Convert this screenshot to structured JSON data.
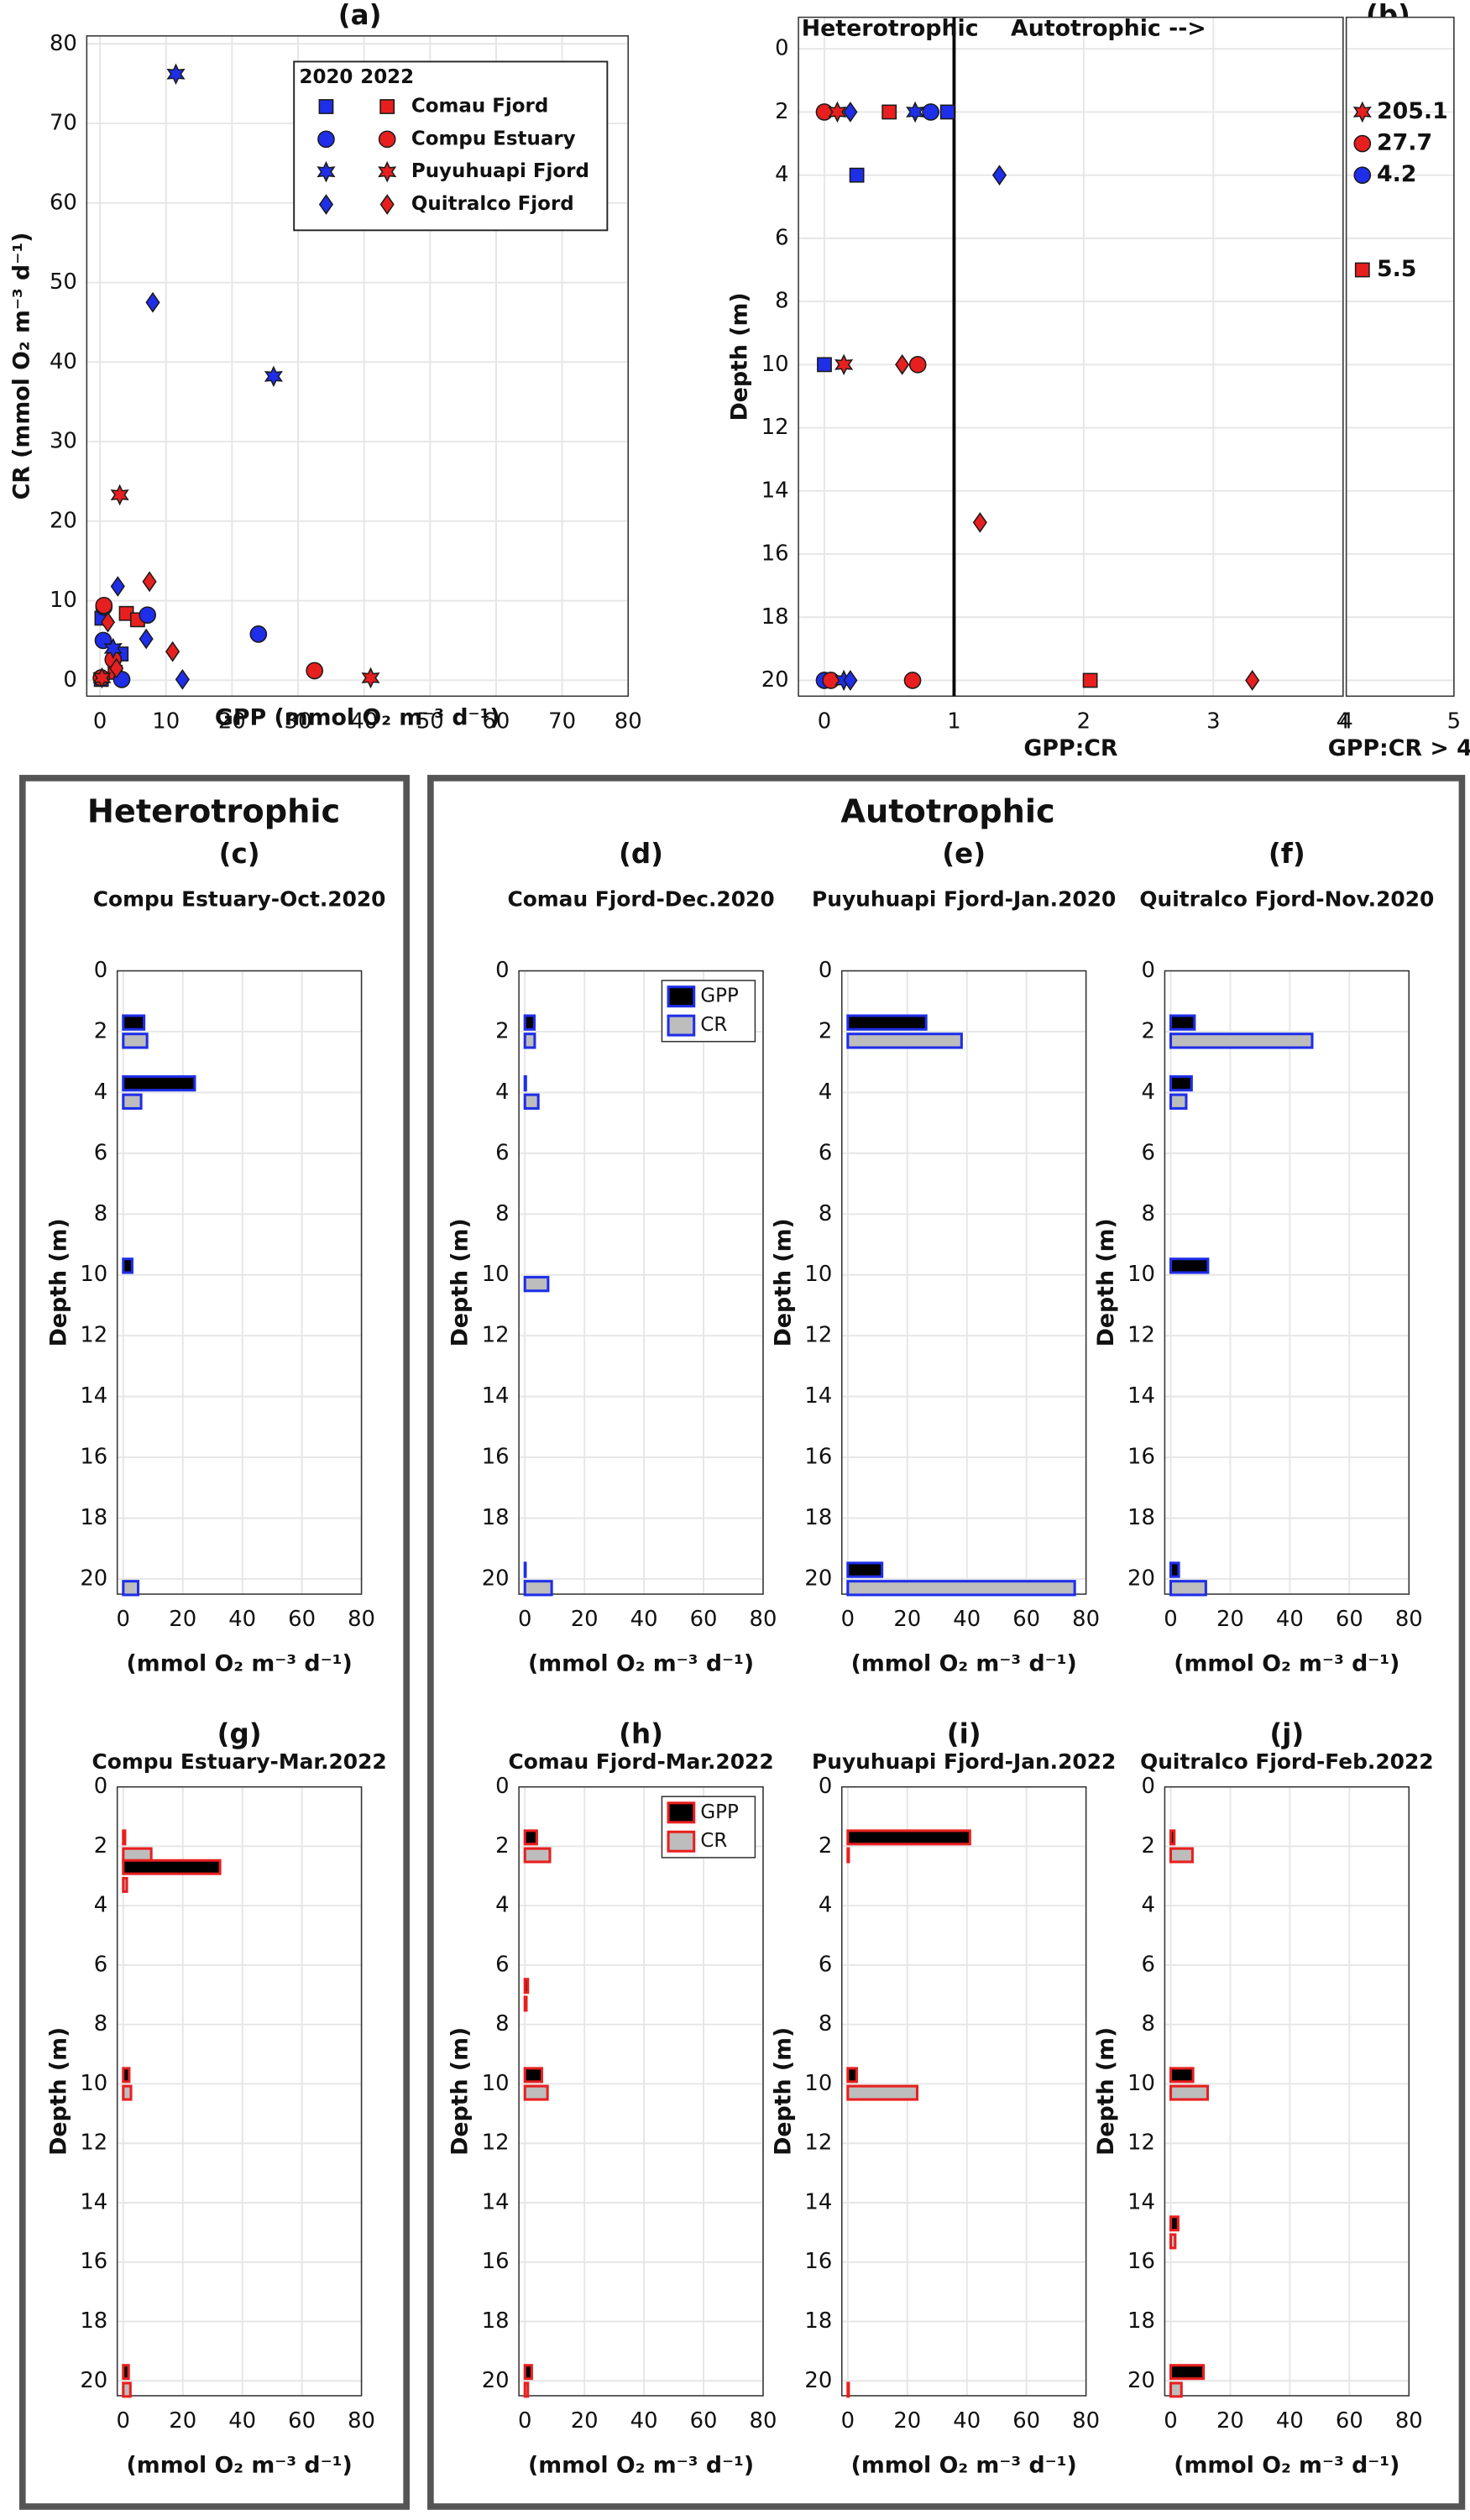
{
  "groups": [
    {
      "title": "Heterotrophic"
    },
    {
      "title": "Autotrophic"
    }
  ],
  "chart_data": [
    {
      "type": "scatter",
      "label": "(a)",
      "xlabel": "GPP (mmol O₂ m⁻³ d⁻¹)",
      "ylabel": "CR (mmol O₂ m⁻³ d⁻¹)",
      "xlim": [
        -2,
        80
      ],
      "ylim": [
        -2,
        81
      ],
      "xticks": [
        0,
        10,
        20,
        30,
        40,
        50,
        60,
        70,
        80
      ],
      "yticks": [
        0,
        10,
        20,
        30,
        40,
        50,
        60,
        70,
        80
      ],
      "grid": true,
      "legend": "upper right",
      "years": [
        {
          "label": "2020",
          "color": "#1f2ee8"
        },
        {
          "label": "2022",
          "color": "#e81f1f"
        }
      ],
      "sites": [
        {
          "name": "Comau Fjord",
          "marker": "square",
          "points": [
            {
              "x": [
                0.3,
                3.2,
                0.2
              ],
              "y": [
                7.8,
                3.3,
                0.1
              ]
            },
            {
              "x": [
                4.0,
                5.7,
                2.3
              ],
              "y": [
                8.4,
                7.6,
                1.0
              ]
            }
          ]
        },
        {
          "name": "Compu Estuary",
          "marker": "circle",
          "points": [
            {
              "x": [
                0.6,
                0.5,
                7.2,
                24.0,
                3.3
              ],
              "y": [
                9.2,
                5.0,
                8.2,
                5.8,
                0.1
              ]
            },
            {
              "x": [
                32.5,
                0.6,
                2.0,
                0.2
              ],
              "y": [
                1.2,
                9.4,
                2.6,
                0.3
              ]
            }
          ]
        },
        {
          "name": "Puyuhuapi Fjord",
          "marker": "star",
          "points": [
            {
              "x": [
                11.5,
                26.3,
                2.0
              ],
              "y": [
                76.2,
                38.2,
                4.0
              ]
            },
            {
              "x": [
                3.0,
                41.0,
                0.3
              ],
              "y": [
                23.3,
                0.3,
                0.3
              ]
            }
          ]
        },
        {
          "name": "Quitralco Fjord",
          "marker": "diamond",
          "points": [
            {
              "x": [
                8.0,
                2.7,
                7.0,
                12.5
              ],
              "y": [
                47.5,
                11.8,
                5.2,
                0.1
              ]
            },
            {
              "x": [
                1.2,
                7.5,
                2.5,
                11.0
              ],
              "y": [
                7.3,
                12.4,
                1.5,
                3.6
              ]
            }
          ]
        }
      ]
    },
    {
      "type": "scatter",
      "label": "(b)",
      "annotations": [
        "Heterotrophic",
        "Autotrophic -->"
      ],
      "xlabel": "GPP:CR",
      "ylabel": "Depth (m)",
      "xlim": [
        -0.2,
        4
      ],
      "ylim": [
        -1,
        20.5
      ],
      "y_reversed": true,
      "xticks": [
        0,
        1,
        2,
        3,
        4
      ],
      "yticks": [
        0,
        2,
        4,
        6,
        8,
        10,
        12,
        14,
        16,
        18,
        20
      ],
      "grid": true,
      "threshold": 1,
      "years": [
        {
          "color": "#1f2ee8"
        },
        {
          "color": "#e81f1f"
        }
      ],
      "sites": [
        {
          "marker": "square",
          "points": [
            {
              "x": [
                0.95,
                0.25,
                0.0
              ],
              "y": [
                2,
                4,
                10
              ]
            },
            {
              "x": [
                0.5,
                2.05
              ],
              "y": [
                2,
                20
              ]
            }
          ]
        },
        {
          "marker": "circle",
          "points": [
            {
              "x": [
                0.82,
                0.0
              ],
              "y": [
                2,
                20
              ]
            },
            {
              "x": [
                0.0,
                0.72,
                0.68,
                0.05
              ],
              "y": [
                2,
                10,
                20,
                20
              ]
            }
          ]
        },
        {
          "marker": "star",
          "points": [
            {
              "x": [
                0.7,
                0.15
              ],
              "y": [
                2,
                20
              ]
            },
            {
              "x": [
                0.1,
                0.15
              ],
              "y": [
                2,
                10
              ]
            }
          ]
        },
        {
          "marker": "diamond",
          "points": [
            {
              "x": [
                0.2,
                1.35,
                0.2
              ],
              "y": [
                2,
                4,
                20
              ]
            },
            {
              "x": [
                0.6,
                1.2,
                3.3
              ],
              "y": [
                10,
                15,
                20
              ]
            }
          ]
        }
      ],
      "inset": {
        "xlabel": "GPP:CR > 4",
        "xlim": [
          4,
          5
        ],
        "xticks": [
          4,
          5
        ],
        "points": [
          {
            "marker": "star",
            "color": "#e81f1f",
            "value": 205.1,
            "y": 2
          },
          {
            "marker": "circle",
            "color": "#e81f1f",
            "value": 27.7,
            "y": 3
          },
          {
            "marker": "circle",
            "color": "#1f2ee8",
            "value": 4.2,
            "y": 4
          },
          {
            "marker": "square",
            "color": "#e81f1f",
            "value": 5.5,
            "y": 7
          }
        ]
      }
    },
    {
      "type": "barh",
      "label": "(c)",
      "title": "Compu Estuary-Oct.2020",
      "edge_color": "#1f2ee8",
      "xlabel": "(mmol O₂ m⁻³ d⁻¹)",
      "ylabel": "Depth (m)",
      "xlim": [
        -2,
        80
      ],
      "ylim": [
        0,
        20.5
      ],
      "y_reversed": true,
      "xticks": [
        0,
        20,
        40,
        60,
        80
      ],
      "yticks": [
        0,
        2,
        4,
        6,
        8,
        10,
        12,
        14,
        16,
        18,
        20
      ],
      "grid": true,
      "depths": [
        2,
        4,
        10,
        20
      ],
      "series": [
        {
          "fill": "#000000",
          "values": [
            7,
            24,
            3,
            null
          ]
        },
        {
          "fill": "#bdbdbd",
          "values": [
            8,
            6,
            null,
            5
          ]
        }
      ]
    },
    {
      "type": "barh",
      "label": "(d)",
      "title": "Comau Fjord-Dec.2020",
      "edge_color": "#1f2ee8",
      "xlabel": "(mmol O₂ m⁻³ d⁻¹)",
      "ylabel": "Depth (m)",
      "xlim": [
        -2,
        80
      ],
      "ylim": [
        0,
        20.5
      ],
      "y_reversed": true,
      "xticks": [
        0,
        20,
        40,
        60,
        80
      ],
      "yticks": [
        0,
        2,
        4,
        6,
        8,
        10,
        12,
        14,
        16,
        18,
        20
      ],
      "grid": true,
      "legend": "upper right",
      "depths": [
        2,
        4,
        10,
        20
      ],
      "series": [
        {
          "name": "GPP",
          "fill": "#000000",
          "values": [
            3.2,
            0.3,
            null,
            0.2
          ]
        },
        {
          "name": "CR",
          "fill": "#bdbdbd",
          "values": [
            3.3,
            4.5,
            7.8,
            9.0
          ]
        }
      ]
    },
    {
      "type": "barh",
      "label": "(e)",
      "title": "Puyuhuapi Fjord-Jan.2020",
      "edge_color": "#1f2ee8",
      "xlabel": "(mmol O₂ m⁻³ d⁻¹)",
      "ylabel": "Depth (m)",
      "xlim": [
        -2,
        80
      ],
      "ylim": [
        0,
        20.5
      ],
      "y_reversed": true,
      "xticks": [
        0,
        20,
        40,
        60,
        80
      ],
      "yticks": [
        0,
        2,
        4,
        6,
        8,
        10,
        12,
        14,
        16,
        18,
        20
      ],
      "grid": true,
      "depths": [
        2,
        20
      ],
      "series": [
        {
          "fill": "#000000",
          "values": [
            26.3,
            11.5
          ]
        },
        {
          "fill": "#bdbdbd",
          "values": [
            38.2,
            76.2
          ]
        }
      ]
    },
    {
      "type": "barh",
      "label": "(f)",
      "title": "Quitralco Fjord-Nov.2020",
      "edge_color": "#1f2ee8",
      "xlabel": "(mmol O₂ m⁻³ d⁻¹)",
      "ylabel": "Depth (m)",
      "xlim": [
        -2,
        80
      ],
      "ylim": [
        0,
        20.5
      ],
      "y_reversed": true,
      "xticks": [
        0,
        20,
        40,
        60,
        80
      ],
      "yticks": [
        0,
        2,
        4,
        6,
        8,
        10,
        12,
        14,
        16,
        18,
        20
      ],
      "grid": true,
      "depths": [
        2,
        4,
        10,
        20
      ],
      "series": [
        {
          "fill": "#000000",
          "values": [
            8.0,
            7.0,
            12.5,
            2.7
          ]
        },
        {
          "fill": "#bdbdbd",
          "values": [
            47.5,
            5.2,
            null,
            11.8
          ]
        }
      ]
    },
    {
      "type": "barh",
      "label": "(g)",
      "title": "Compu Estuary-Mar.2022",
      "edge_color": "#e81f1f",
      "xlabel": "(mmol O₂ m⁻³ d⁻¹)",
      "ylabel": "Depth (m)",
      "xlim": [
        -2,
        80
      ],
      "ylim": [
        0,
        20.5
      ],
      "y_reversed": true,
      "xticks": [
        0,
        20,
        40,
        60,
        80
      ],
      "yticks": [
        0,
        2,
        4,
        6,
        8,
        10,
        12,
        14,
        16,
        18,
        20
      ],
      "grid": true,
      "depths": [
        2,
        3,
        10,
        20
      ],
      "series": [
        {
          "fill": "#000000",
          "values": [
            0.6,
            32.5,
            2.0,
            1.8
          ]
        },
        {
          "fill": "#bdbdbd",
          "values": [
            9.4,
            1.2,
            2.6,
            2.4
          ]
        }
      ]
    },
    {
      "type": "barh",
      "label": "(h)",
      "title": "Comau Fjord-Mar.2022",
      "edge_color": "#e81f1f",
      "xlabel": "(mmol O₂ m⁻³ d⁻¹)",
      "ylabel": "Depth (m)",
      "xlim": [
        -2,
        80
      ],
      "ylim": [
        0,
        20.5
      ],
      "y_reversed": true,
      "xticks": [
        0,
        20,
        40,
        60,
        80
      ],
      "yticks": [
        0,
        2,
        4,
        6,
        8,
        10,
        12,
        14,
        16,
        18,
        20
      ],
      "grid": true,
      "legend": "upper right",
      "depths": [
        2,
        7,
        10,
        20
      ],
      "series": [
        {
          "name": "GPP",
          "fill": "#000000",
          "values": [
            4.0,
            1.0,
            5.7,
            2.3
          ]
        },
        {
          "name": "CR",
          "fill": "#bdbdbd",
          "values": [
            8.4,
            0.5,
            7.6,
            1.0
          ]
        }
      ]
    },
    {
      "type": "barh",
      "label": "(i)",
      "title": "Puyuhuapi Fjord-Jan.2022",
      "edge_color": "#e81f1f",
      "xlabel": "(mmol O₂ m⁻³ d⁻¹)",
      "ylabel": "Depth (m)",
      "xlim": [
        -2,
        80
      ],
      "ylim": [
        0,
        20.5
      ],
      "y_reversed": true,
      "xticks": [
        0,
        20,
        40,
        60,
        80
      ],
      "yticks": [
        0,
        2,
        4,
        6,
        8,
        10,
        12,
        14,
        16,
        18,
        20
      ],
      "grid": true,
      "depths": [
        2,
        10,
        20
      ],
      "series": [
        {
          "fill": "#000000",
          "values": [
            41.0,
            3.0,
            null
          ]
        },
        {
          "fill": "#bdbdbd",
          "values": [
            0.3,
            23.3,
            0.3
          ]
        }
      ]
    },
    {
      "type": "barh",
      "label": "(j)",
      "title": "Quitralco Fjord-Feb.2022",
      "edge_color": "#e81f1f",
      "xlabel": "(mmol O₂ m⁻³ d⁻¹)",
      "ylabel": "Depth (m)",
      "xlim": [
        -2,
        80
      ],
      "ylim": [
        0,
        20.5
      ],
      "y_reversed": true,
      "xticks": [
        0,
        20,
        40,
        60,
        80
      ],
      "yticks": [
        0,
        2,
        4,
        6,
        8,
        10,
        12,
        14,
        16,
        18,
        20
      ],
      "grid": true,
      "depths": [
        2,
        10,
        15,
        20
      ],
      "series": [
        {
          "fill": "#000000",
          "values": [
            1.2,
            7.5,
            2.5,
            11.0
          ]
        },
        {
          "fill": "#bdbdbd",
          "values": [
            7.3,
            12.4,
            1.5,
            3.6
          ]
        }
      ]
    }
  ]
}
